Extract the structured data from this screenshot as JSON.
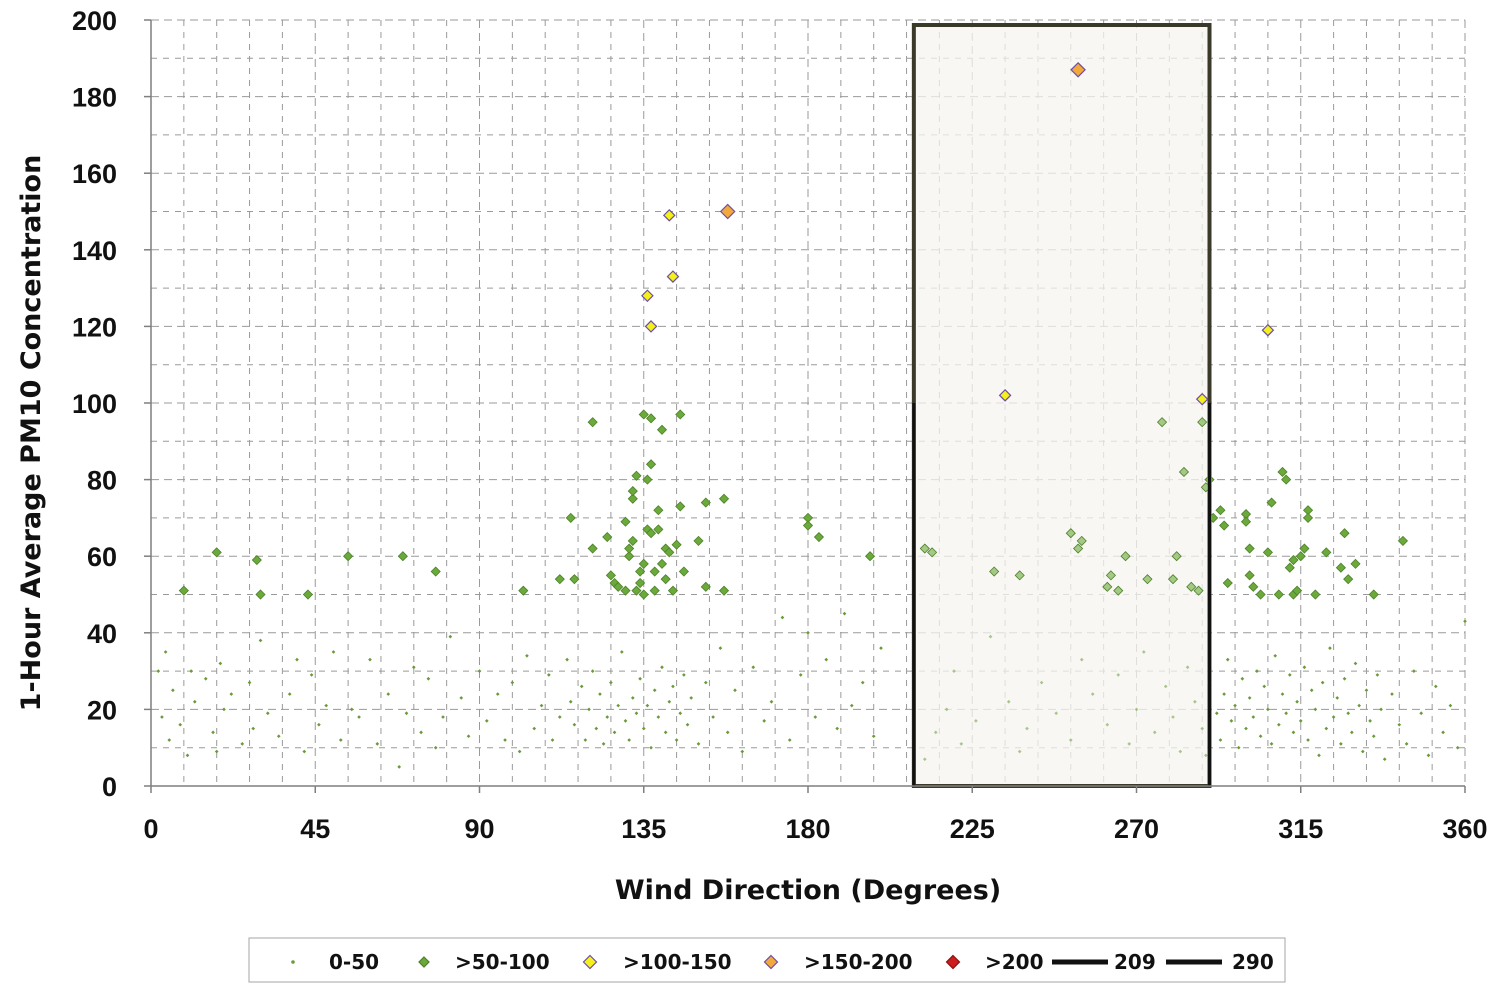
{
  "chart_data": {
    "type": "scatter",
    "xlabel": "Wind Direction (Degrees)",
    "ylabel": "1-Hour Average PM10 Concentration",
    "xlim": [
      0,
      360
    ],
    "ylim": [
      0,
      200
    ],
    "xticks": [
      0,
      45,
      90,
      135,
      180,
      225,
      270,
      315,
      360
    ],
    "yticks": [
      0,
      20,
      40,
      60,
      80,
      100,
      120,
      140,
      160,
      180,
      200
    ],
    "grid": true,
    "legend_position": "bottom",
    "highlight_sector": [
      209,
      290
    ],
    "series": [
      {
        "name": "0-50",
        "marker": "small-dot",
        "color": "#6a9a3a",
        "note_density": "dense clusters near 125-150 and 285-340 degrees",
        "points": [
          [
            2,
            30
          ],
          [
            3,
            18
          ],
          [
            4,
            35
          ],
          [
            5,
            12
          ],
          [
            6,
            25
          ],
          [
            8,
            16
          ],
          [
            10,
            8
          ],
          [
            11,
            30
          ],
          [
            12,
            22
          ],
          [
            15,
            28
          ],
          [
            17,
            14
          ],
          [
            18,
            9
          ],
          [
            19,
            32
          ],
          [
            20,
            20
          ],
          [
            22,
            24
          ],
          [
            25,
            11
          ],
          [
            27,
            27
          ],
          [
            28,
            15
          ],
          [
            30,
            38
          ],
          [
            32,
            19
          ],
          [
            35,
            13
          ],
          [
            38,
            24
          ],
          [
            40,
            33
          ],
          [
            42,
            9
          ],
          [
            44,
            29
          ],
          [
            46,
            16
          ],
          [
            48,
            21
          ],
          [
            50,
            35
          ],
          [
            52,
            12
          ],
          [
            55,
            20
          ],
          [
            57,
            18
          ],
          [
            60,
            33
          ],
          [
            62,
            11
          ],
          [
            65,
            24
          ],
          [
            68,
            5
          ],
          [
            70,
            19
          ],
          [
            72,
            31
          ],
          [
            74,
            14
          ],
          [
            76,
            28
          ],
          [
            78,
            10
          ],
          [
            80,
            18
          ],
          [
            82,
            39
          ],
          [
            85,
            23
          ],
          [
            87,
            13
          ],
          [
            90,
            30
          ],
          [
            92,
            17
          ],
          [
            95,
            24
          ],
          [
            97,
            12
          ],
          [
            99,
            27
          ],
          [
            101,
            9
          ],
          [
            103,
            34
          ],
          [
            105,
            15
          ],
          [
            107,
            21
          ],
          [
            109,
            29
          ],
          [
            110,
            12
          ],
          [
            112,
            18
          ],
          [
            114,
            33
          ],
          [
            115,
            22
          ],
          [
            116,
            16
          ],
          [
            118,
            26
          ],
          [
            119,
            12
          ],
          [
            120,
            20
          ],
          [
            121,
            30
          ],
          [
            122,
            15
          ],
          [
            123,
            24
          ],
          [
            124,
            11
          ],
          [
            125,
            18
          ],
          [
            126,
            27
          ],
          [
            127,
            14
          ],
          [
            128,
            21
          ],
          [
            129,
            35
          ],
          [
            130,
            17
          ],
          [
            131,
            12
          ],
          [
            132,
            23
          ],
          [
            133,
            19
          ],
          [
            134,
            28
          ],
          [
            135,
            15
          ],
          [
            136,
            21
          ],
          [
            137,
            10
          ],
          [
            138,
            25
          ],
          [
            139,
            18
          ],
          [
            140,
            31
          ],
          [
            141,
            14
          ],
          [
            142,
            22
          ],
          [
            143,
            26
          ],
          [
            144,
            12
          ],
          [
            145,
            19
          ],
          [
            146,
            29
          ],
          [
            147,
            16
          ],
          [
            148,
            23
          ],
          [
            150,
            11
          ],
          [
            152,
            27
          ],
          [
            154,
            18
          ],
          [
            156,
            36
          ],
          [
            158,
            14
          ],
          [
            160,
            25
          ],
          [
            162,
            9
          ],
          [
            165,
            31
          ],
          [
            168,
            17
          ],
          [
            170,
            22
          ],
          [
            173,
            44
          ],
          [
            175,
            12
          ],
          [
            178,
            29
          ],
          [
            180,
            40
          ],
          [
            182,
            18
          ],
          [
            185,
            33
          ],
          [
            188,
            15
          ],
          [
            190,
            45
          ],
          [
            192,
            21
          ],
          [
            195,
            27
          ],
          [
            198,
            13
          ],
          [
            200,
            36
          ],
          [
            212,
            7
          ],
          [
            215,
            14
          ],
          [
            218,
            20
          ],
          [
            220,
            30
          ],
          [
            222,
            11
          ],
          [
            226,
            17
          ],
          [
            230,
            39
          ],
          [
            235,
            22
          ],
          [
            238,
            9
          ],
          [
            240,
            15
          ],
          [
            244,
            27
          ],
          [
            248,
            19
          ],
          [
            252,
            12
          ],
          [
            255,
            33
          ],
          [
            258,
            24
          ],
          [
            262,
            16
          ],
          [
            265,
            29
          ],
          [
            268,
            11
          ],
          [
            270,
            20
          ],
          [
            272,
            35
          ],
          [
            275,
            14
          ],
          [
            278,
            26
          ],
          [
            280,
            18
          ],
          [
            282,
            9
          ],
          [
            284,
            31
          ],
          [
            286,
            22
          ],
          [
            288,
            15
          ],
          [
            289,
            8
          ],
          [
            290,
            27
          ],
          [
            292,
            19
          ],
          [
            293,
            12
          ],
          [
            294,
            24
          ],
          [
            295,
            33
          ],
          [
            296,
            17
          ],
          [
            297,
            21
          ],
          [
            298,
            10
          ],
          [
            299,
            28
          ],
          [
            300,
            15
          ],
          [
            301,
            23
          ],
          [
            302,
            18
          ],
          [
            303,
            30
          ],
          [
            304,
            13
          ],
          [
            305,
            26
          ],
          [
            306,
            20
          ],
          [
            307,
            11
          ],
          [
            308,
            34
          ],
          [
            309,
            16
          ],
          [
            310,
            24
          ],
          [
            311,
            19
          ],
          [
            312,
            29
          ],
          [
            313,
            14
          ],
          [
            314,
            22
          ],
          [
            315,
            17
          ],
          [
            316,
            31
          ],
          [
            317,
            12
          ],
          [
            318,
            25
          ],
          [
            319,
            20
          ],
          [
            320,
            8
          ],
          [
            321,
            27
          ],
          [
            322,
            15
          ],
          [
            323,
            36
          ],
          [
            324,
            18
          ],
          [
            325,
            23
          ],
          [
            326,
            11
          ],
          [
            327,
            28
          ],
          [
            328,
            19
          ],
          [
            329,
            14
          ],
          [
            330,
            32
          ],
          [
            331,
            21
          ],
          [
            332,
            9
          ],
          [
            333,
            25
          ],
          [
            334,
            17
          ],
          [
            335,
            13
          ],
          [
            336,
            29
          ],
          [
            337,
            20
          ],
          [
            338,
            7
          ],
          [
            340,
            24
          ],
          [
            342,
            16
          ],
          [
            344,
            11
          ],
          [
            346,
            30
          ],
          [
            348,
            19
          ],
          [
            350,
            8
          ],
          [
            352,
            26
          ],
          [
            354,
            14
          ],
          [
            356,
            21
          ],
          [
            358,
            10
          ],
          [
            360,
            43
          ]
        ]
      },
      {
        "name": ">50-100",
        "marker": "diamond",
        "color": "#6aaa3a",
        "points": [
          [
            9,
            51
          ],
          [
            18,
            61
          ],
          [
            29,
            59
          ],
          [
            30,
            50
          ],
          [
            43,
            50
          ],
          [
            54,
            60
          ],
          [
            69,
            60
          ],
          [
            78,
            56
          ],
          [
            102,
            51
          ],
          [
            112,
            54
          ],
          [
            115,
            70
          ],
          [
            116,
            54
          ],
          [
            121,
            62
          ],
          [
            121,
            95
          ],
          [
            125,
            65
          ],
          [
            126,
            55
          ],
          [
            127,
            53
          ],
          [
            128,
            52
          ],
          [
            130,
            51
          ],
          [
            130,
            69
          ],
          [
            131,
            60
          ],
          [
            131,
            62
          ],
          [
            132,
            64
          ],
          [
            132,
            75
          ],
          [
            132,
            77
          ],
          [
            133,
            81
          ],
          [
            133,
            51
          ],
          [
            134,
            53
          ],
          [
            134,
            56
          ],
          [
            135,
            58
          ],
          [
            135,
            50
          ],
          [
            135,
            97
          ],
          [
            136,
            80
          ],
          [
            136,
            67
          ],
          [
            137,
            66
          ],
          [
            137,
            84
          ],
          [
            137,
            96
          ],
          [
            138,
            56
          ],
          [
            138,
            51
          ],
          [
            139,
            67
          ],
          [
            139,
            72
          ],
          [
            140,
            93
          ],
          [
            140,
            58
          ],
          [
            141,
            54
          ],
          [
            141,
            62
          ],
          [
            142,
            61
          ],
          [
            143,
            51
          ],
          [
            144,
            63
          ],
          [
            145,
            97
          ],
          [
            145,
            73
          ],
          [
            146,
            56
          ],
          [
            150,
            64
          ],
          [
            152,
            52
          ],
          [
            152,
            74
          ],
          [
            157,
            51
          ],
          [
            157,
            75
          ],
          [
            180,
            70
          ],
          [
            180,
            68
          ],
          [
            183,
            65
          ],
          [
            197,
            60
          ],
          [
            212,
            62
          ],
          [
            214,
            61
          ],
          [
            231,
            56
          ],
          [
            238,
            55
          ],
          [
            252,
            66
          ],
          [
            254,
            62
          ],
          [
            255,
            64
          ],
          [
            262,
            52
          ],
          [
            263,
            55
          ],
          [
            265,
            51
          ],
          [
            267,
            60
          ],
          [
            273,
            54
          ],
          [
            277,
            95
          ],
          [
            280,
            54
          ],
          [
            281,
            60
          ],
          [
            283,
            82
          ],
          [
            285,
            52
          ],
          [
            287,
            51
          ],
          [
            288,
            95
          ],
          [
            289,
            78
          ],
          [
            290,
            80
          ],
          [
            291,
            70
          ],
          [
            293,
            72
          ],
          [
            294,
            68
          ],
          [
            295,
            53
          ],
          [
            300,
            71
          ],
          [
            300,
            69
          ],
          [
            301,
            55
          ],
          [
            301,
            62
          ],
          [
            302,
            52
          ],
          [
            304,
            50
          ],
          [
            306,
            61
          ],
          [
            307,
            74
          ],
          [
            309,
            50
          ],
          [
            310,
            82
          ],
          [
            311,
            80
          ],
          [
            312,
            57
          ],
          [
            313,
            59
          ],
          [
            313,
            50
          ],
          [
            314,
            51
          ],
          [
            315,
            60
          ],
          [
            316,
            62
          ],
          [
            317,
            72
          ],
          [
            317,
            70
          ],
          [
            319,
            50
          ],
          [
            322,
            61
          ],
          [
            326,
            57
          ],
          [
            327,
            66
          ],
          [
            328,
            54
          ],
          [
            330,
            58
          ],
          [
            335,
            50
          ],
          [
            343,
            64
          ]
        ]
      },
      {
        "name": ">100-150",
        "marker": "diamond",
        "color": "#f4f01c",
        "points": [
          [
            136,
            128
          ],
          [
            137,
            120
          ],
          [
            142,
            149
          ],
          [
            143,
            133
          ],
          [
            234,
            102
          ],
          [
            288,
            101
          ],
          [
            306,
            119
          ]
        ]
      },
      {
        "name": ">150-200",
        "marker": "diamond",
        "color": "#f2a83a",
        "points": [
          [
            158,
            150
          ],
          [
            254,
            187
          ]
        ]
      },
      {
        "name": ">200",
        "marker": "diamond",
        "color": "#cc1e1e",
        "points": []
      },
      {
        "name": "209",
        "marker": "line",
        "color": "#111111",
        "x": 209
      },
      {
        "name": "290",
        "marker": "line",
        "color": "#111111",
        "x": 290
      }
    ]
  },
  "colors": {
    "grid": "#9a9a9a",
    "sector_fill": "#f5f4ef",
    "sector_stroke": "#3b3a2a",
    "marker_outline": "#6d4fa3"
  }
}
